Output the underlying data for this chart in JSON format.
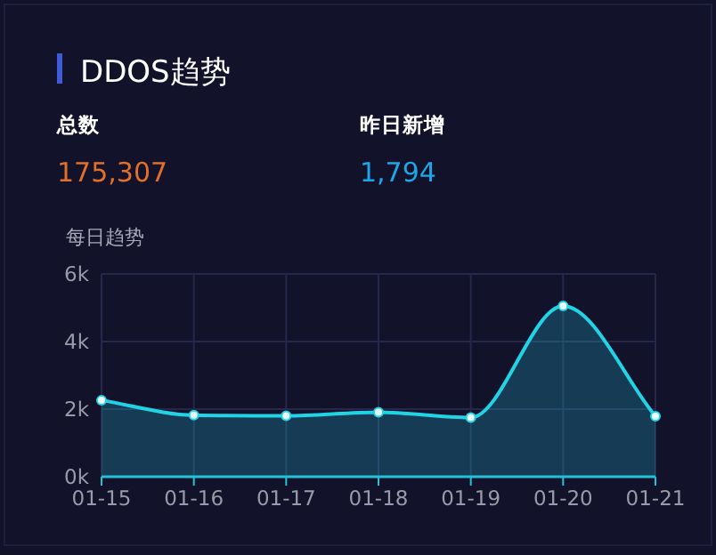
{
  "chart_data": {
    "type": "area",
    "title": "DDOS趋势",
    "ylabel": "每日趋势",
    "annotations": [
      "总数",
      "175,307",
      "昨日新增",
      "1,794"
    ],
    "categories": [
      "01-15",
      "01-16",
      "01-17",
      "01-18",
      "01-19",
      "01-20",
      "01-21"
    ],
    "series": [
      {
        "color": "#22d3e6",
        "values": [
          2260,
          1820,
          1800,
          1910,
          1750,
          5050,
          1790
        ]
      }
    ],
    "ylim": [
      0,
      6000
    ],
    "yticks": [
      {
        "value": 0,
        "label": "0k"
      },
      {
        "value": 2000,
        "label": "2k"
      },
      {
        "value": 4000,
        "label": "4k"
      },
      {
        "value": 6000,
        "label": "6k"
      }
    ],
    "grid": true,
    "marker": "circle"
  }
}
